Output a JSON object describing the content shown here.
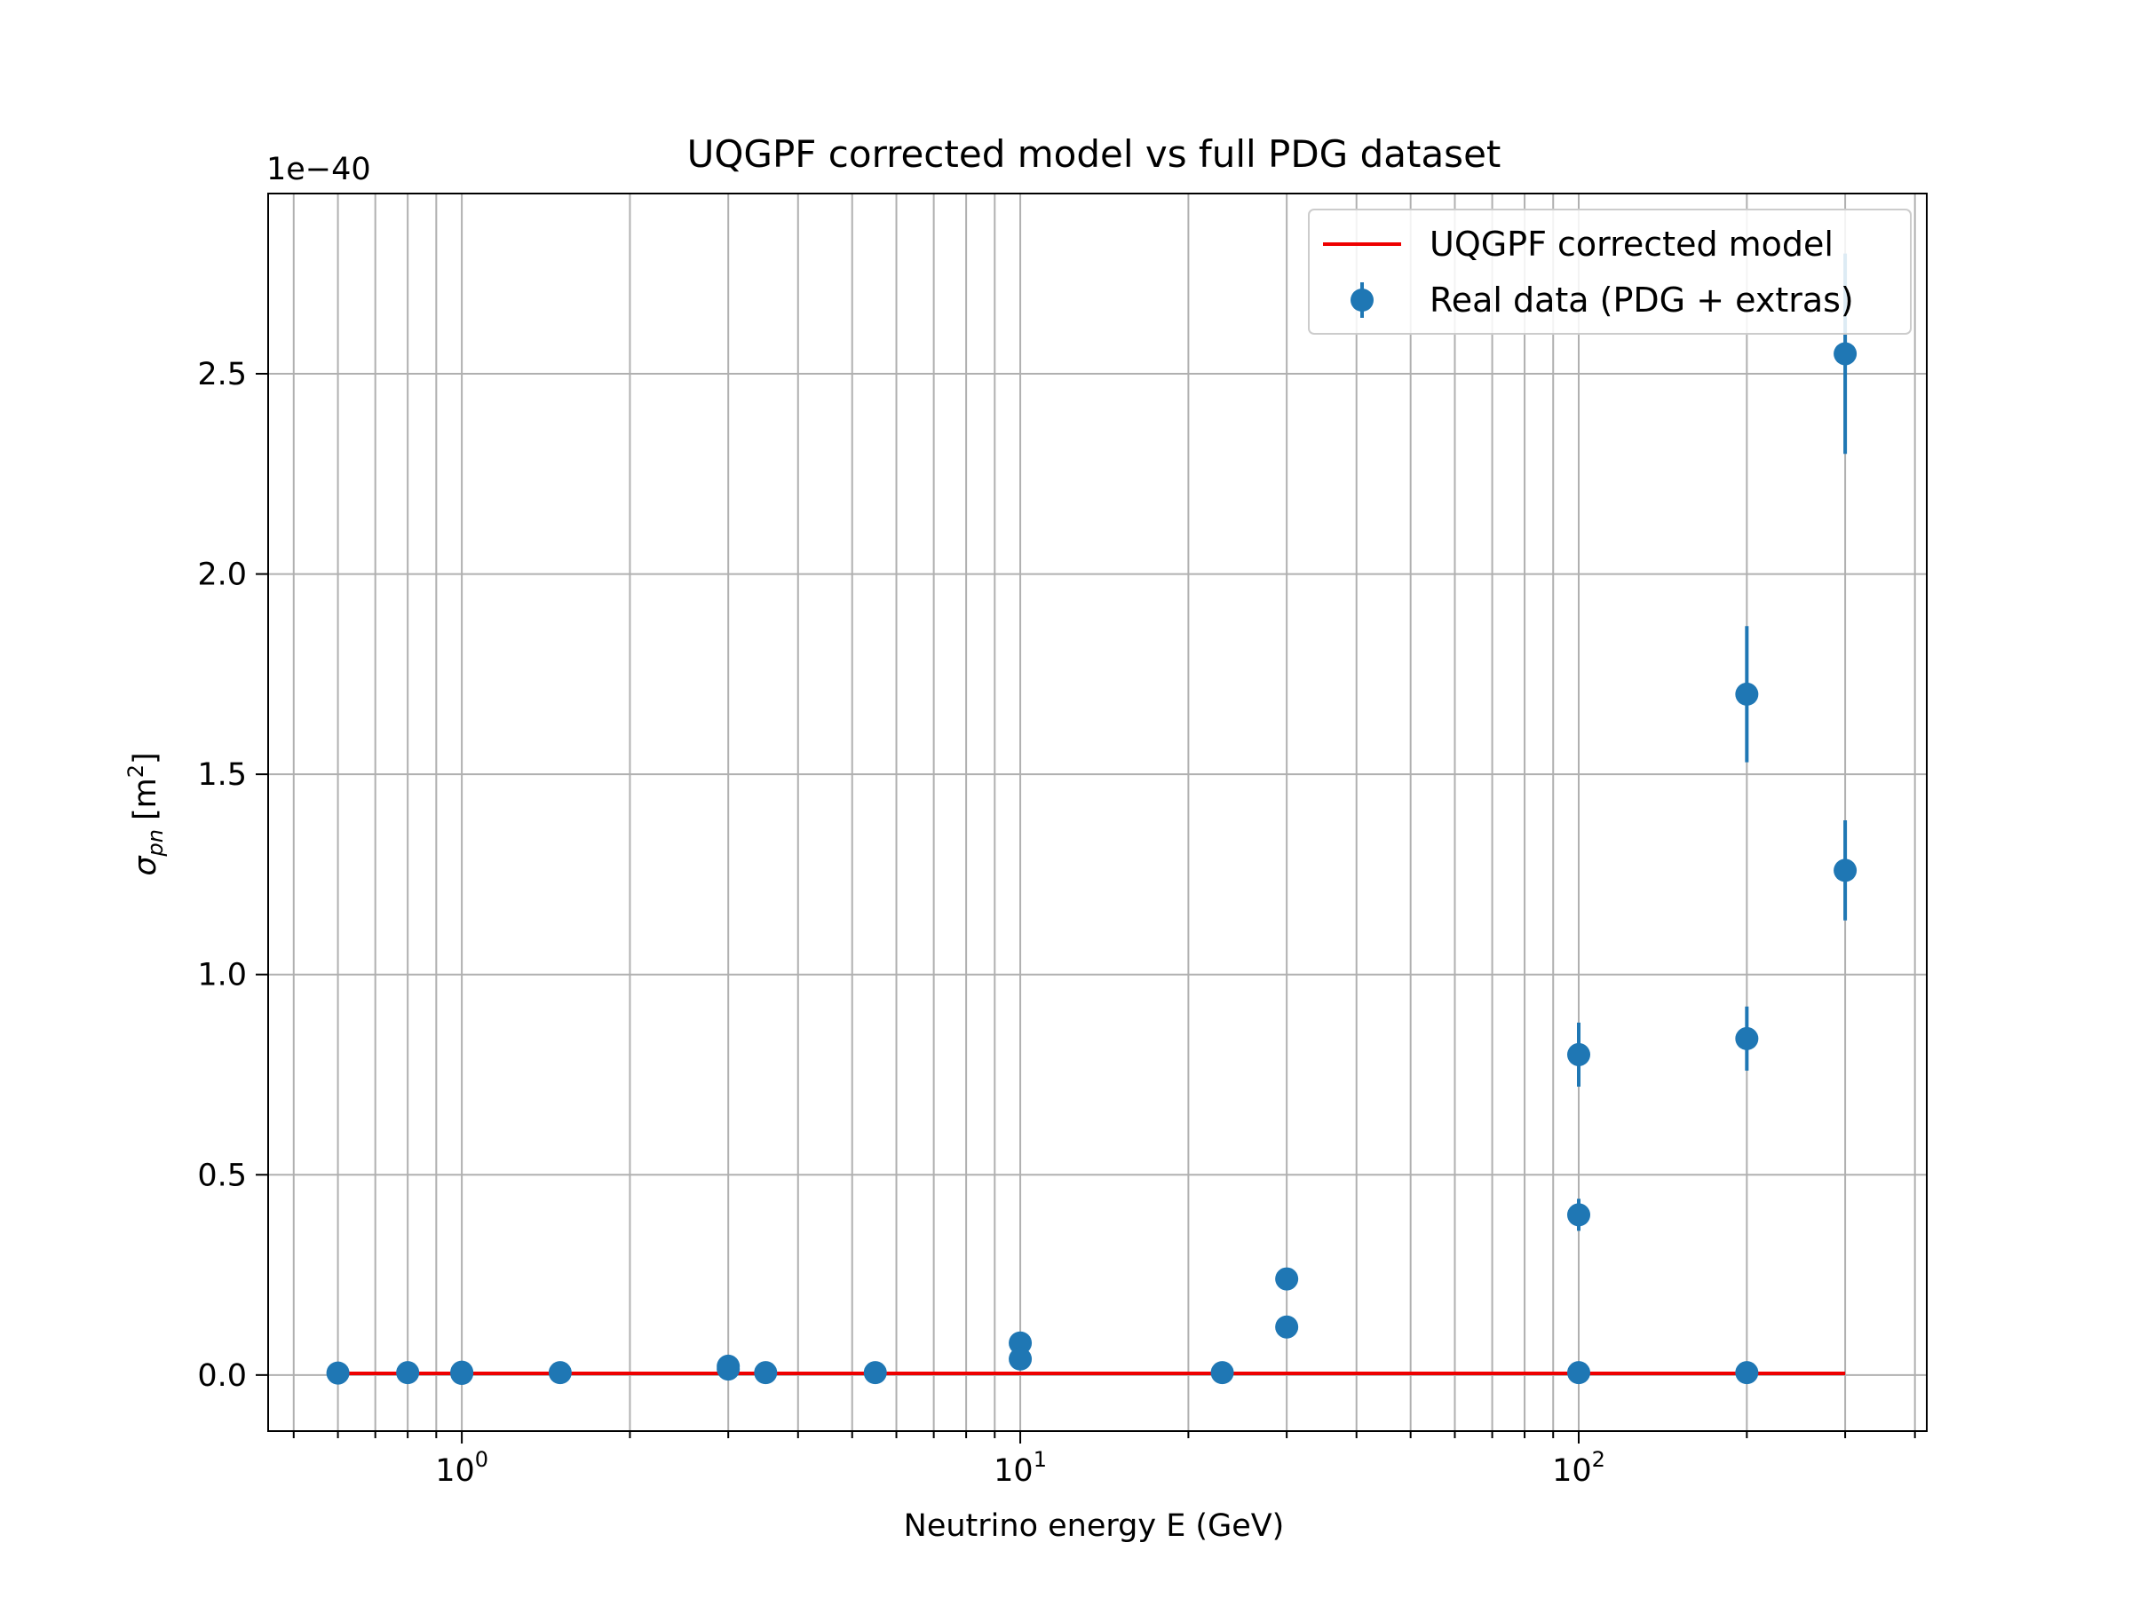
{
  "chart_data": {
    "type": "scatter",
    "title": "UQGPF corrected model vs full PDG dataset",
    "xlabel": "Neutrino energy E (GeV)",
    "ylabel": {
      "symbol": "σ",
      "subscript": "pn",
      "unit_open": "[m",
      "unit_sup": "2",
      "unit_close": "]"
    },
    "y_offset_text": "1e−40",
    "x_scale": "log",
    "xlim": [
      0.45,
      420
    ],
    "ylim": [
      -0.14,
      2.95
    ],
    "grid": true,
    "legend_position": "upper right",
    "x_ticks": [
      {
        "value": 1,
        "base": "10",
        "exp": "0"
      },
      {
        "value": 10,
        "base": "10",
        "exp": "1"
      },
      {
        "value": 100,
        "base": "10",
        "exp": "2"
      }
    ],
    "y_ticks": [
      {
        "value": 0.0,
        "label": "0.0"
      },
      {
        "value": 0.5,
        "label": "0.5"
      },
      {
        "value": 1.0,
        "label": "1.0"
      },
      {
        "value": 1.5,
        "label": "1.5"
      },
      {
        "value": 2.0,
        "label": "2.0"
      },
      {
        "value": 2.5,
        "label": "2.5"
      }
    ],
    "series": [
      {
        "name": "UQGPF corrected model",
        "kind": "line",
        "color": "#ee0000",
        "x": [
          0.6,
          0.8,
          1.0,
          1.5,
          3.0,
          3.5,
          5.5,
          10,
          23,
          30,
          100,
          200,
          300
        ],
        "y": [
          0.004,
          0.004,
          0.004,
          0.004,
          0.004,
          0.004,
          0.004,
          0.004,
          0.004,
          0.004,
          0.004,
          0.004,
          0.004
        ]
      },
      {
        "name": "Real data (PDG + extras)",
        "kind": "errorbar",
        "color": "#1f77b4",
        "x": [
          0.6,
          0.8,
          1.0,
          1.0,
          1.5,
          3.0,
          3.0,
          3.5,
          5.5,
          10,
          10,
          23,
          30,
          30,
          100,
          100,
          100,
          200,
          200,
          200,
          300,
          300
        ],
        "y": [
          0.005,
          0.006,
          0.007,
          0.004,
          0.006,
          0.022,
          0.015,
          0.006,
          0.006,
          0.08,
          0.04,
          0.006,
          0.12,
          0.24,
          0.006,
          0.4,
          0.8,
          0.006,
          0.84,
          1.7,
          1.26,
          2.55
        ],
        "err": [
          0,
          0,
          0,
          0,
          0,
          0,
          0,
          0,
          0,
          0,
          0,
          0,
          0,
          0,
          0,
          0.04,
          0.08,
          0,
          0.08,
          0.17,
          0.125,
          0.25
        ]
      }
    ]
  }
}
